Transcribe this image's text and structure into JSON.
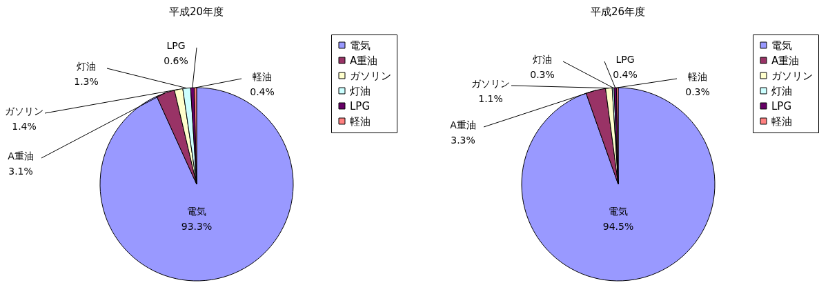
{
  "chart_data": [
    {
      "type": "pie",
      "title": "平成20年度",
      "categories": [
        "電気",
        "A重油",
        "ガソリン",
        "灯油",
        "LPG",
        "軽油"
      ],
      "values": [
        93.3,
        3.1,
        1.4,
        1.3,
        0.6,
        0.4
      ],
      "colors": [
        "#9999ff",
        "#993366",
        "#ffffcc",
        "#ccffff",
        "#660066",
        "#ff8080"
      ],
      "value_labels": [
        "93.3%",
        "3.1%",
        "1.4%",
        "1.3%",
        "0.6%",
        "0.4%"
      ],
      "legend": "right"
    },
    {
      "type": "pie",
      "title": "平成26年度",
      "categories": [
        "電気",
        "A重油",
        "ガソリン",
        "灯油",
        "LPG",
        "軽油"
      ],
      "values": [
        94.5,
        3.3,
        1.1,
        0.3,
        0.4,
        0.3
      ],
      "colors": [
        "#9999ff",
        "#993366",
        "#ffffcc",
        "#ccffff",
        "#660066",
        "#ff8080"
      ],
      "value_labels": [
        "94.5%",
        "3.3%",
        "1.1%",
        "0.3%",
        "0.4%",
        "0.3%"
      ],
      "legend": "right"
    }
  ]
}
